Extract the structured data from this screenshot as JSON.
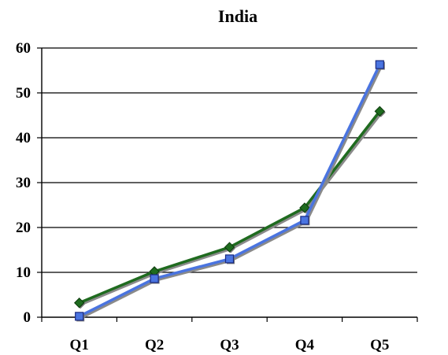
{
  "chart_data": {
    "type": "line",
    "title": "Indiа",
    "categories": [
      "Q1",
      "Q2",
      "Q3",
      "Q4",
      "Q5"
    ],
    "ylim": [
      0,
      60
    ],
    "yticks": [
      "0",
      "10",
      "20",
      "30",
      "40",
      "50",
      "60"
    ],
    "grid": true,
    "legend": "none",
    "series": [
      {
        "values": [
          3.2,
          10.2,
          15.6,
          24.4,
          45.9
        ],
        "color": "#1f6b1f",
        "marker": "diamond"
      },
      {
        "values": [
          0.2,
          8.6,
          13.0,
          21.6,
          56.3
        ],
        "color": "#4a74e0",
        "marker": "square"
      }
    ]
  }
}
